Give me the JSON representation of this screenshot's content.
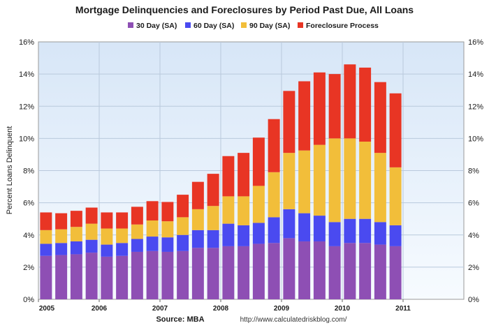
{
  "chart_data": {
    "type": "bar",
    "stacked": true,
    "title": "Mortgage Delinquencies and Foreclosures by Period Past Due, All Loans",
    "ylabel": "Percent Loans Delinquent",
    "xlabel": "Source: MBA",
    "source_url": "http://www.calculatedriskblog.com/",
    "ylim": [
      0,
      16
    ],
    "yticks": [
      "0%",
      "2%",
      "4%",
      "6%",
      "8%",
      "10%",
      "12%",
      "14%",
      "16%"
    ],
    "x_year_labels": [
      "2005",
      "2006",
      "2007",
      "2008",
      "2009",
      "2010",
      "2011"
    ],
    "legend_position": "top",
    "grid": true,
    "categories": [
      "2005 Q1",
      "2005 Q2",
      "2005 Q3",
      "2005 Q4",
      "2006 Q1",
      "2006 Q2",
      "2006 Q3",
      "2006 Q4",
      "2007 Q1",
      "2007 Q2",
      "2007 Q3",
      "2007 Q4",
      "2008 Q1",
      "2008 Q2",
      "2008 Q3",
      "2008 Q4",
      "2009 Q1",
      "2009 Q2",
      "2009 Q3",
      "2009 Q4",
      "2010 Q1",
      "2010 Q2",
      "2010 Q3",
      "2010 Q4"
    ],
    "series": [
      {
        "name": "30 Day (SA)",
        "color": "#8e4fb4",
        "values": [
          2.7,
          2.75,
          2.8,
          2.9,
          2.65,
          2.7,
          2.95,
          3.0,
          2.95,
          3.0,
          3.2,
          3.2,
          3.3,
          3.3,
          3.45,
          3.5,
          3.8,
          3.6,
          3.6,
          3.3,
          3.5,
          3.5,
          3.4,
          3.3
        ]
      },
      {
        "name": "60 Day (SA)",
        "color": "#4a4af0",
        "values": [
          0.75,
          0.75,
          0.8,
          0.8,
          0.75,
          0.8,
          0.8,
          0.9,
          0.9,
          1.0,
          1.1,
          1.1,
          1.4,
          1.3,
          1.3,
          1.6,
          1.8,
          1.75,
          1.6,
          1.5,
          1.5,
          1.5,
          1.4,
          1.3
        ]
      },
      {
        "name": "90 Day (SA)",
        "color": "#f2be3a",
        "values": [
          0.85,
          0.85,
          0.9,
          1.0,
          1.0,
          0.9,
          0.9,
          1.0,
          1.0,
          1.1,
          1.3,
          1.5,
          1.7,
          1.8,
          2.3,
          2.8,
          3.5,
          3.9,
          4.4,
          5.2,
          5.0,
          4.8,
          4.3,
          3.6
        ]
      },
      {
        "name": "Foreclosure Process",
        "color": "#e83524",
        "values": [
          1.1,
          1.0,
          1.0,
          1.0,
          1.0,
          1.0,
          1.1,
          1.2,
          1.2,
          1.4,
          1.7,
          2.0,
          2.5,
          2.7,
          3.0,
          3.3,
          3.85,
          4.3,
          4.5,
          4.0,
          4.6,
          4.6,
          4.4,
          4.6
        ]
      }
    ]
  }
}
